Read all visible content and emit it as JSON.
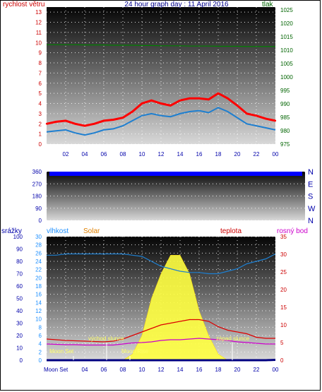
{
  "title": "24 hour graph day : 11 April 2016",
  "colors": {
    "wind": "#ff0000",
    "gust_shadow": "#1e7fd0",
    "pressure": "#008000",
    "direction": "#0000ff",
    "humidity": "#1e7fd0",
    "solar": "#ffff40",
    "temperature": "#dd0000",
    "dewpoint": "#cc00cc",
    "rain": "#000080",
    "label_red": "#cc0000",
    "label_green": "#006400",
    "label_blue": "#0000aa",
    "label_cyan": "#1e90ff",
    "label_orange": "#e08000",
    "label_magenta": "#cc00cc"
  },
  "x_ticks": [
    "02",
    "04",
    "06",
    "08",
    "10",
    "12",
    "14",
    "16",
    "18",
    "20",
    "22",
    "00"
  ],
  "chart_data": [
    {
      "type": "line",
      "name": "wind_pressure",
      "left_label": "rychlost větru",
      "right_label": "tlak",
      "left_ticks": [
        "0",
        "1",
        "2",
        "3",
        "4",
        "5",
        "6",
        "7",
        "8",
        "9",
        "10",
        "11",
        "12",
        "13"
      ],
      "right_ticks": [
        "975",
        "980",
        "985",
        "990",
        "995",
        "1000",
        "1005",
        "1010",
        "1015",
        "1020",
        "1025"
      ],
      "ylim_left": [
        0,
        13.5
      ],
      "ylim_right": [
        975,
        1026
      ],
      "x": [
        0,
        1,
        2,
        3,
        4,
        5,
        6,
        7,
        8,
        9,
        10,
        11,
        12,
        13,
        14,
        15,
        16,
        17,
        18,
        19,
        20,
        21,
        22,
        23,
        24
      ],
      "series": [
        {
          "key": "wind",
          "values": [
            2.0,
            2.2,
            2.3,
            2.0,
            1.8,
            2.0,
            2.3,
            2.4,
            2.6,
            3.2,
            4.0,
            4.3,
            4.0,
            3.8,
            4.3,
            4.5,
            4.5,
            4.4,
            5.0,
            4.5,
            3.8,
            3.0,
            2.8,
            2.5,
            2.3
          ]
        },
        {
          "key": "gust_shadow",
          "values": [
            1.2,
            1.3,
            1.4,
            1.1,
            0.9,
            1.1,
            1.4,
            1.5,
            1.8,
            2.3,
            2.8,
            3.0,
            2.8,
            2.7,
            3.0,
            3.2,
            3.3,
            3.1,
            3.6,
            3.2,
            2.6,
            2.0,
            1.8,
            1.6,
            1.4
          ]
        },
        {
          "key": "pressure",
          "axis": "right",
          "values": [
            1012,
            1012,
            1012,
            1012,
            1011.9,
            1011.9,
            1011.9,
            1011.8,
            1011.8,
            1011.8,
            1011.7,
            1011.7,
            1011.6,
            1011.6,
            1011.6,
            1011.5,
            1011.5,
            1011.5,
            1011.4,
            1011.4,
            1011.4,
            1011.3,
            1011.3,
            1011.3,
            1011.3
          ]
        }
      ]
    },
    {
      "type": "line",
      "name": "wind_direction",
      "left_ticks": [
        "0",
        "90",
        "180",
        "270",
        "360"
      ],
      "right_ticks": [
        "N",
        "W",
        "S",
        "E",
        "N"
      ],
      "ylim": [
        0,
        360
      ]
    },
    {
      "type": "area",
      "name": "humidity_solar_temp",
      "labels": {
        "rain": "srážky",
        "humidity": "vlhkost",
        "solar": "Solar",
        "temperature": "teplota",
        "dewpoint": "rosný bod"
      },
      "left_rain_ticks": [
        "0",
        "10",
        "20",
        "30",
        "40",
        "50",
        "60",
        "70",
        "80",
        "90",
        "100"
      ],
      "left_hum_ticks": [
        "0",
        "2",
        "4",
        "6",
        "8",
        "10",
        "12",
        "14",
        "16",
        "18",
        "20",
        "22",
        "24",
        "26",
        "28",
        "30"
      ],
      "right_ticks": [
        "0",
        "5",
        "10",
        "15",
        "20",
        "25",
        "30",
        "35"
      ],
      "annotations": [
        "východ slunce",
        "západ slunce",
        "Moon Set",
        "Moon Rise"
      ],
      "x_first_label": "Moon Set",
      "x": [
        0,
        1,
        2,
        3,
        4,
        5,
        6,
        7,
        8,
        9,
        10,
        11,
        12,
        13,
        14,
        15,
        16,
        17,
        18,
        19,
        20,
        21,
        22,
        23,
        24
      ],
      "series": [
        {
          "key": "humidity",
          "values": [
            85,
            85,
            86,
            86,
            86,
            86,
            86,
            86,
            86,
            85,
            84,
            80,
            76,
            74,
            72,
            71,
            71,
            70,
            70,
            72,
            74,
            78,
            80,
            82,
            86
          ]
        },
        {
          "key": "solar",
          "values": [
            0,
            0,
            0,
            0,
            0,
            0,
            0,
            0,
            0,
            5,
            20,
            50,
            70,
            85,
            85,
            70,
            40,
            20,
            5,
            0,
            0,
            0,
            0,
            0,
            0
          ]
        },
        {
          "key": "temperature",
          "values": [
            6,
            5.8,
            5.6,
            5.5,
            5.4,
            5.3,
            5.2,
            5.4,
            6,
            7,
            8,
            9,
            10,
            10.5,
            11,
            11.5,
            11.5,
            11,
            9.5,
            8.5,
            8,
            7.5,
            6.5,
            6.2,
            6.2
          ]
        },
        {
          "key": "dewpoint",
          "values": [
            4.6,
            4.5,
            4.4,
            4.4,
            4.3,
            4.3,
            4.3,
            4.3,
            4.6,
            4.9,
            5,
            5.2,
            5.6,
            5.8,
            5.8,
            6,
            6.2,
            6,
            5.8,
            5.6,
            5.2,
            5,
            4.8,
            4.6,
            4.6
          ]
        },
        {
          "key": "rain",
          "values": [
            0,
            0,
            0,
            0,
            0,
            0,
            0,
            0,
            0,
            0,
            0,
            0,
            0,
            0,
            0,
            0,
            0,
            0,
            0,
            0,
            0,
            0,
            0,
            0,
            0.5
          ]
        }
      ]
    }
  ]
}
